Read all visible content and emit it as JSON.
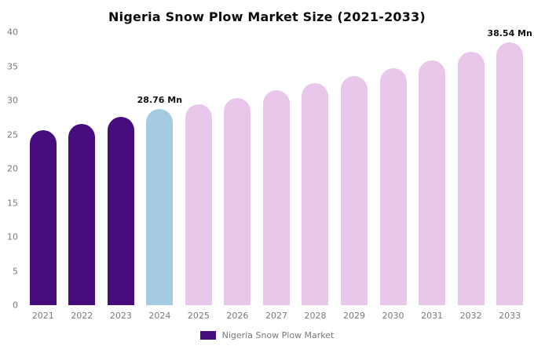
{
  "chart_data": {
    "type": "bar",
    "title": "Nigeria Snow Plow Market Size (2021-2033)",
    "categories": [
      "2021",
      "2022",
      "2023",
      "2024",
      "2025",
      "2026",
      "2027",
      "2028",
      "2029",
      "2030",
      "2031",
      "2032",
      "2033"
    ],
    "values": [
      25.6,
      26.6,
      27.6,
      28.76,
      29.4,
      30.4,
      31.5,
      32.5,
      33.6,
      34.7,
      35.9,
      37.1,
      38.54
    ],
    "bar_colors": [
      "#470d7f",
      "#470d7f",
      "#470d7f",
      "#a5cbe2",
      "#e8c7ea",
      "#e8c7ea",
      "#e8c7ea",
      "#e8c7ea",
      "#e8c7ea",
      "#e8c7ea",
      "#e8c7ea",
      "#e8c7ea",
      "#e8c7ea"
    ],
    "ylim": [
      0,
      40
    ],
    "yticks": [
      0,
      5,
      10,
      15,
      20,
      25,
      30,
      35,
      40
    ],
    "grid": false,
    "xlabel": "",
    "ylabel": "",
    "legend_position": "bottom",
    "annotations": [
      {
        "index": 3,
        "text": "28.76 Mn"
      },
      {
        "index": 12,
        "text": "38.54 Mn"
      }
    ]
  },
  "legend": {
    "label": "Nigeria Snow Plow Market",
    "swatch_color": "#470d7f"
  }
}
